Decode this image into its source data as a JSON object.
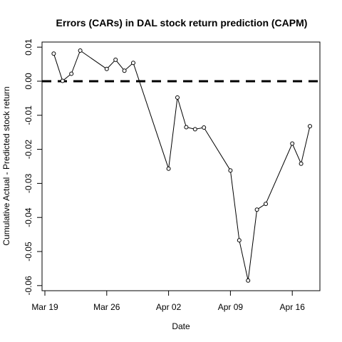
{
  "chart_data": {
    "type": "line",
    "title": "Errors (CARs) in DAL stock return prediction (CAPM)",
    "xlabel": "Date",
    "ylabel": "Cumulative Actual - Predicted stock return",
    "x_ticks": [
      "2018-03-19",
      "2018-03-26",
      "2018-04-02",
      "2018-04-09",
      "2018-04-16"
    ],
    "x_tick_labels": [
      "Mar 19",
      "Mar 26",
      "Apr 02",
      "Apr 09",
      "Apr 16"
    ],
    "xlim": [
      "2018-03-19",
      "2018-04-18"
    ],
    "y_ticks": [
      0.01,
      0.0,
      -0.01,
      -0.02,
      -0.03,
      -0.04,
      -0.05,
      -0.06
    ],
    "y_tick_labels": [
      "0.01",
      "0.00",
      "-0.01",
      "-0.02",
      "-0.03",
      "-0.04",
      "-0.05",
      "-0.06"
    ],
    "ylim": [
      -0.0615,
      0.0115
    ],
    "reference_line": {
      "y": 0,
      "style": "dashed"
    },
    "grid": false,
    "marker": "open-circle",
    "line_color": "#000000",
    "series": [
      {
        "x": [
          "2018-03-20",
          "2018-03-21",
          "2018-03-22",
          "2018-03-23",
          "2018-03-26",
          "2018-03-27",
          "2018-03-28",
          "2018-03-29",
          "2018-04-02",
          "2018-04-03",
          "2018-04-04",
          "2018-04-05",
          "2018-04-06",
          "2018-04-09",
          "2018-04-10",
          "2018-04-11",
          "2018-04-12",
          "2018-04-13",
          "2018-04-16",
          "2018-04-17",
          "2018-04-18"
        ],
        "y": [
          0.0081,
          0.0001,
          0.0022,
          0.009,
          0.0036,
          0.0063,
          0.0031,
          0.0054,
          -0.0257,
          -0.0048,
          -0.0135,
          -0.0141,
          -0.0136,
          -0.0262,
          -0.0467,
          -0.0585,
          -0.0377,
          -0.036,
          -0.0183,
          -0.0242,
          -0.0132
        ]
      }
    ]
  }
}
